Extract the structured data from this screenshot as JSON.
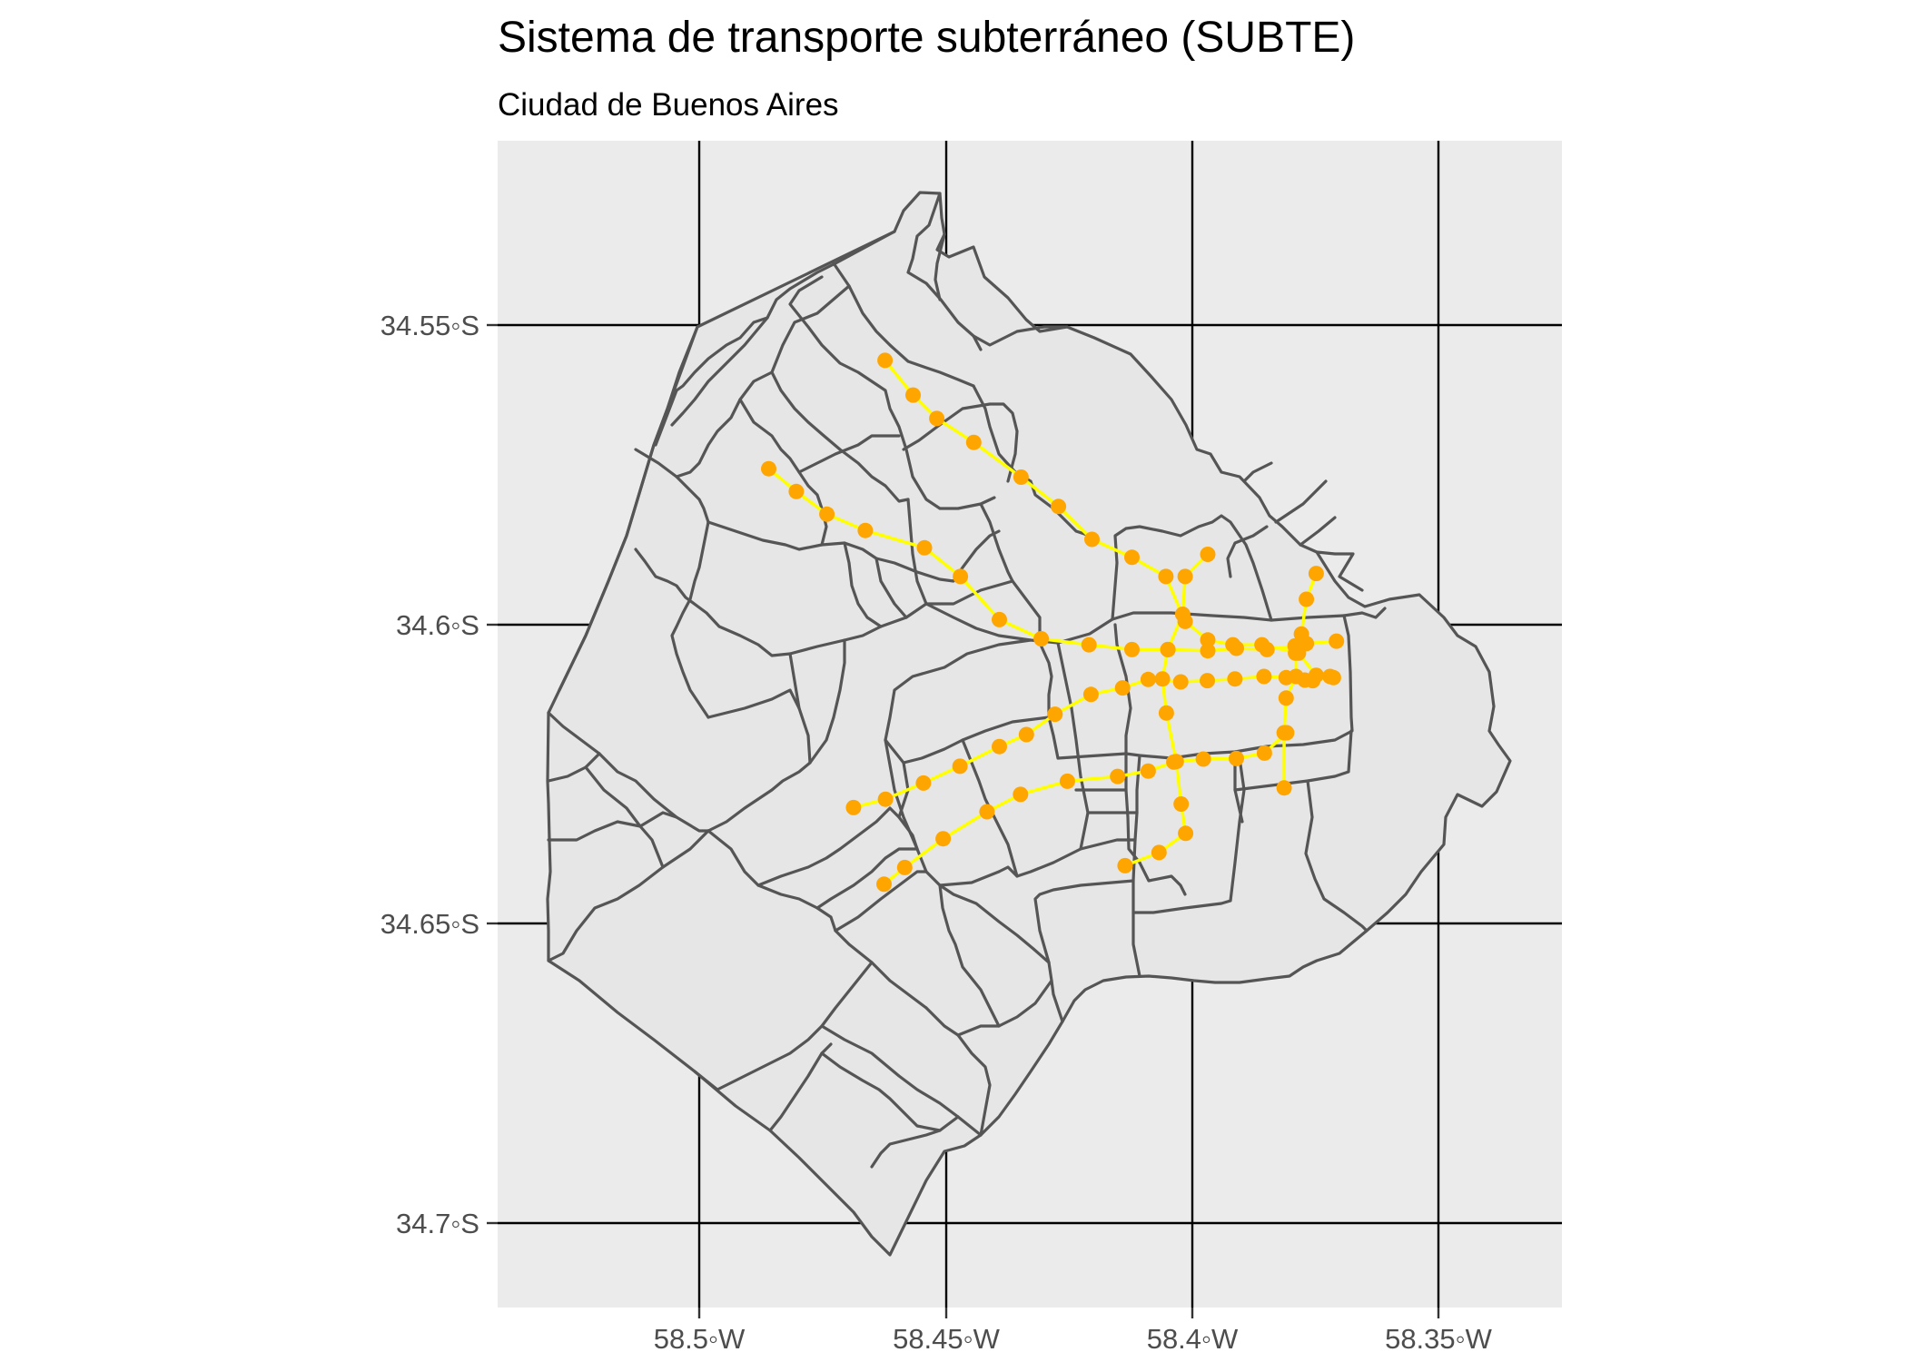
{
  "title": "Sistema de transporte subterráneo (SUBTE)",
  "subtitle": "Ciudad de Buenos Aires",
  "colors": {
    "panel_background": "#ebebeb",
    "city_fill": "#e6e6e6",
    "boundary_stroke": "#555555",
    "subte_lines": "#ffff00",
    "stations": "#ffa500",
    "graticule": "#000000"
  },
  "axes": {
    "x_ticks": [
      "58.5◦W",
      "58.45◦W",
      "58.4◦W",
      "58.35◦W"
    ],
    "y_ticks": [
      "34.55◦S",
      "34.6◦S",
      "34.65◦S",
      "34.7◦S"
    ]
  },
  "map_data": {
    "lon_ticks": [
      -58.5,
      -58.45,
      -58.4,
      -58.35
    ],
    "lat_ticks": [
      -34.55,
      -34.6,
      -34.65,
      -34.7
    ],
    "subte_lines": [
      {
        "stations": [
          [
            -58.4623,
            -34.5559
          ],
          [
            -58.4566,
            -34.5617
          ],
          [
            -58.4518,
            -34.5656
          ],
          [
            -58.4443,
            -34.5696
          ],
          [
            -58.4347,
            -34.5754
          ],
          [
            -58.4271,
            -34.5803
          ],
          [
            -58.4203,
            -34.5858
          ],
          [
            -58.4122,
            -34.5888
          ],
          [
            -58.4053,
            -34.592
          ],
          [
            -58.4014,
            -34.5995
          ],
          [
            -58.3968,
            -34.6026
          ],
          [
            -58.3917,
            -34.6034
          ],
          [
            -58.3858,
            -34.6034
          ],
          [
            -58.3784,
            -34.6048
          ],
          [
            -58.3748,
            -34.6085
          ],
          [
            -58.3713,
            -34.6089
          ]
        ]
      },
      {
        "stations": [
          [
            -58.4859,
            -34.574
          ],
          [
            -58.4803,
            -34.5778
          ],
          [
            -58.4741,
            -34.5816
          ],
          [
            -58.4663,
            -34.5843
          ],
          [
            -58.4543,
            -34.5872
          ],
          [
            -58.447,
            -34.592
          ],
          [
            -58.4391,
            -34.5992
          ],
          [
            -58.4306,
            -34.6024
          ],
          [
            -58.4209,
            -34.6034
          ],
          [
            -58.4122,
            -34.6042
          ],
          [
            -58.4049,
            -34.6042
          ],
          [
            -58.3968,
            -34.6044
          ],
          [
            -58.391,
            -34.604
          ],
          [
            -58.3848,
            -34.6042
          ],
          [
            -58.3791,
            -34.6036
          ],
          [
            -58.3768,
            -34.6032
          ],
          [
            -58.3707,
            -34.6028
          ]
        ]
      },
      {
        "stations": [
          [
            -58.3748,
            -34.5915
          ],
          [
            -58.3768,
            -34.5958
          ],
          [
            -58.3778,
            -34.6016
          ],
          [
            -58.379,
            -34.6048
          ],
          [
            -58.3789,
            -34.6087
          ],
          [
            -58.3809,
            -34.6123
          ],
          [
            -58.3813,
            -34.6181
          ],
          [
            -58.3813,
            -34.6273
          ]
        ]
      },
      {
        "stations": [
          [
            -58.3968,
            -34.5883
          ],
          [
            -58.4014,
            -34.592
          ],
          [
            -58.4019,
            -34.5983
          ],
          [
            -58.4049,
            -34.6042
          ],
          [
            -58.406,
            -34.6091
          ],
          [
            -58.4052,
            -34.6148
          ],
          [
            -58.4032,
            -34.6229
          ],
          [
            -58.4022,
            -34.63
          ],
          [
            -58.4013,
            -34.6349
          ],
          [
            -58.4067,
            -34.6381
          ],
          [
            -58.4136,
            -34.6403
          ]
        ]
      },
      {
        "stations": [
          [
            -58.4687,
            -34.6306
          ],
          [
            -58.4622,
            -34.6292
          ],
          [
            -58.4545,
            -34.6265
          ],
          [
            -58.4471,
            -34.6237
          ],
          [
            -58.4391,
            -34.6204
          ],
          [
            -58.4336,
            -34.6184
          ],
          [
            -58.4278,
            -34.615
          ],
          [
            -58.4205,
            -34.6117
          ],
          [
            -58.4141,
            -34.6106
          ],
          [
            -58.4089,
            -34.6092
          ],
          [
            -58.4023,
            -34.6096
          ],
          [
            -58.3969,
            -34.6094
          ],
          [
            -58.3913,
            -34.6091
          ],
          [
            -58.3854,
            -34.6087
          ],
          [
            -58.3809,
            -34.6089
          ],
          [
            -58.3771,
            -34.6093
          ],
          [
            -58.3755,
            -34.6094
          ],
          [
            -58.372,
            -34.6087
          ]
        ]
      },
      {
        "stations": [
          [
            -58.4625,
            -34.6434
          ],
          [
            -58.4583,
            -34.6406
          ],
          [
            -58.4505,
            -34.6358
          ],
          [
            -58.4416,
            -34.6313
          ],
          [
            -58.4348,
            -34.6284
          ],
          [
            -58.4253,
            -34.6262
          ],
          [
            -58.4151,
            -34.6254
          ],
          [
            -58.4089,
            -34.6245
          ],
          [
            -58.4037,
            -34.623
          ],
          [
            -58.3977,
            -34.6225
          ],
          [
            -58.391,
            -34.6224
          ],
          [
            -58.3853,
            -34.6215
          ],
          [
            -58.3808,
            -34.6181
          ]
        ]
      }
    ]
  }
}
